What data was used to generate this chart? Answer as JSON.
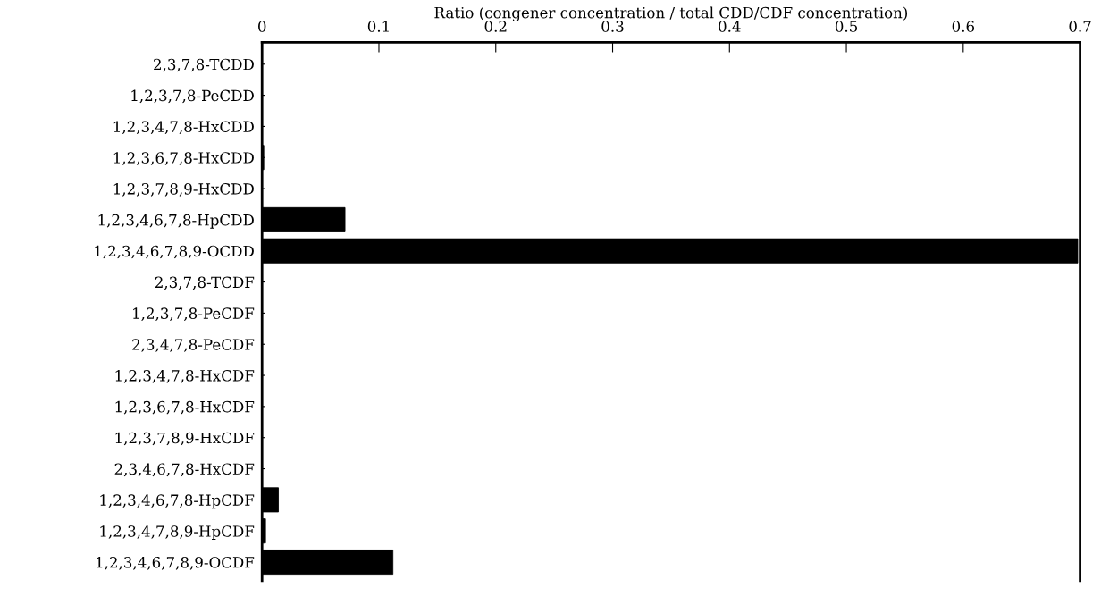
{
  "chart_data": {
    "type": "bar",
    "orientation": "horizontal",
    "xlabel": "Ratio (congener concentration / total CDD/CDF concentration)",
    "categories": [
      "2,3,7,8-TCDD",
      "1,2,3,7,8-PeCDD",
      "1,2,3,4,7,8-HxCDD",
      "1,2,3,6,7,8-HxCDD",
      "1,2,3,7,8,9-HxCDD",
      "1,2,3,4,6,7,8-HpCDD",
      "1,2,3,4,6,7,8,9-OCDD",
      "2,3,7,8-TCDF",
      "1,2,3,7,8-PeCDF",
      "2,3,4,7,8-PeCDF",
      "1,2,3,4,7,8-HxCDF",
      "1,2,3,6,7,8-HxCDF",
      "1,2,3,7,8,9-HxCDF",
      "2,3,4,6,7,8-HxCDF",
      "1,2,3,4,6,7,8-HpCDF",
      "1,2,3,4,7,8,9-HpCDF",
      "1,2,3,4,6,7,8,9-OCDF"
    ],
    "values": [
      0,
      0,
      0,
      0.0015,
      0,
      0.071,
      0.698,
      0,
      0,
      0,
      0,
      0,
      0,
      0,
      0.014,
      0.003,
      0.112
    ],
    "color": "#000000",
    "xlim": [
      0,
      0.7
    ],
    "xticks": [
      0,
      0.1,
      0.2,
      0.3,
      0.4,
      0.5,
      0.6,
      0.7
    ],
    "grid": false,
    "legend": false
  }
}
